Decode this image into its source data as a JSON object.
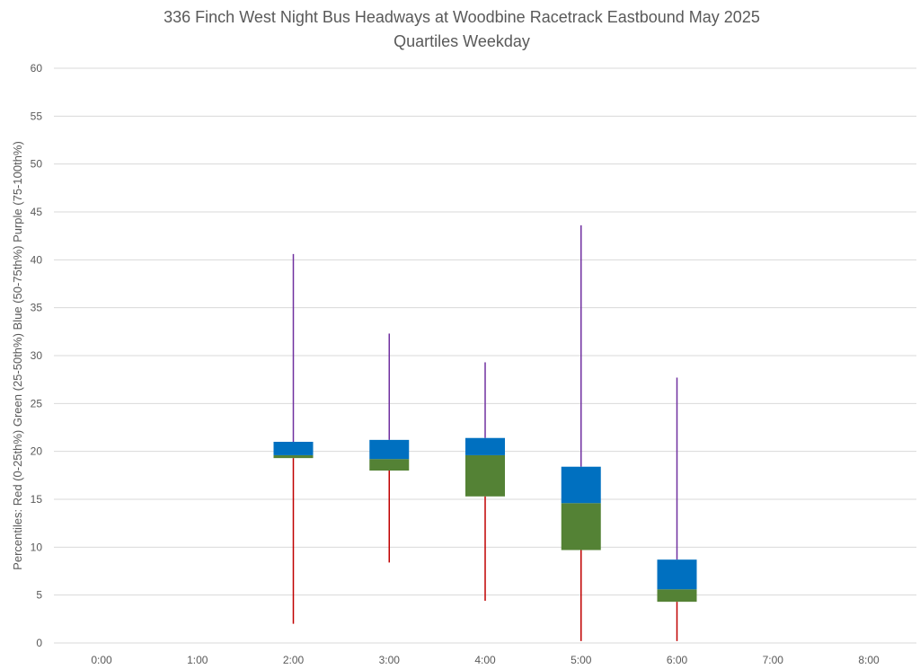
{
  "chart_data": {
    "type": "box",
    "title": "336 Finch West Night Bus Headways at Woodbine Racetrack Eastbound May 2025",
    "subtitle": "Quartiles Weekday",
    "ylabel": "Percentiles:  Red (0-25th%)  Green (25-50th%)  Blue (50-75th%)  Purple (75-100th%)",
    "xlabel": "",
    "categories": [
      "0:00",
      "1:00",
      "2:00",
      "3:00",
      "4:00",
      "5:00",
      "6:00",
      "7:00",
      "8:00"
    ],
    "ylim": [
      0,
      60
    ],
    "yticks": [
      "0",
      "5",
      "10",
      "15",
      "20",
      "25",
      "30",
      "35",
      "40",
      "45",
      "50",
      "55",
      "60"
    ],
    "grid": true,
    "colors": {
      "low_whisker": "#c00000",
      "q2_box": "#548235",
      "q3_box": "#0070c0",
      "high_whisker": "#7030a0"
    },
    "series": [
      {
        "category": "2:00",
        "min": 2.0,
        "q1": 19.3,
        "median": 19.6,
        "q3": 21.0,
        "max": 40.6
      },
      {
        "category": "3:00",
        "min": 8.4,
        "q1": 18.0,
        "median": 19.2,
        "q3": 21.2,
        "max": 32.3
      },
      {
        "category": "4:00",
        "min": 4.4,
        "q1": 15.3,
        "median": 19.6,
        "q3": 21.4,
        "max": 29.3
      },
      {
        "category": "5:00",
        "min": 0.2,
        "q1": 9.7,
        "median": 14.6,
        "q3": 18.4,
        "max": 43.6
      },
      {
        "category": "6:00",
        "min": 0.2,
        "q1": 4.3,
        "median": 5.6,
        "q3": 8.7,
        "max": 27.7
      }
    ]
  }
}
